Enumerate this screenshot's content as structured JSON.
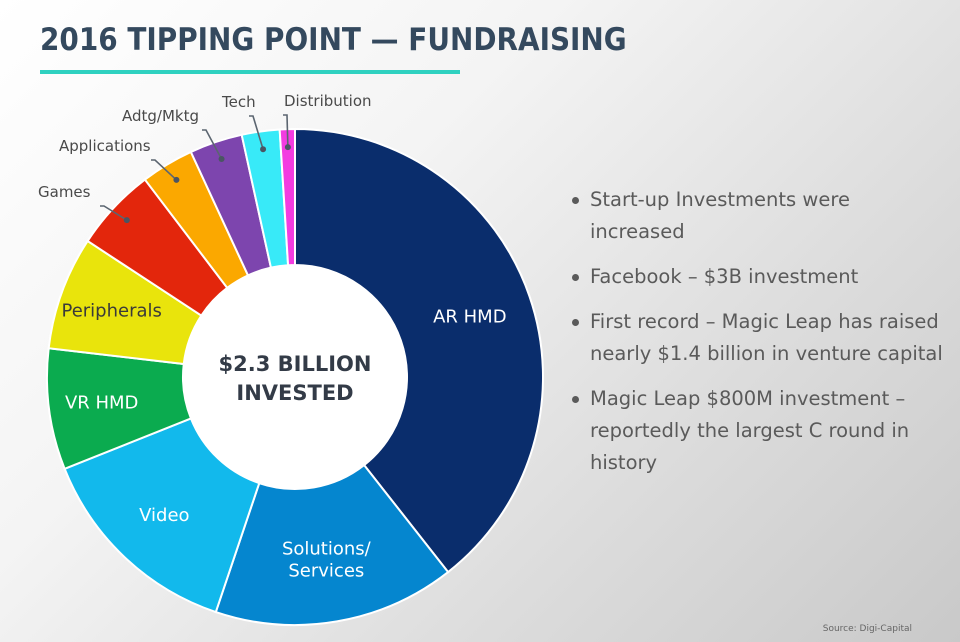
{
  "page": {
    "title": "2016 TIPPING POINT — FUNDRAISING",
    "source": "Source: Digi-Capital",
    "accent_color": "#2fd1c0"
  },
  "bullets": [
    "Start-up Investments were increased",
    "Facebook – $3B investment",
    "First record – Magic Leap has raised nearly $1.4 billion in venture capital",
    "Magic Leap $800M investment – reportedly the largest C round in history"
  ],
  "chart_data": {
    "type": "pie",
    "center_label": [
      "$2.3 BILLION",
      "INVESTED"
    ],
    "unit": "share of total",
    "slices": [
      {
        "label": "AR HMD",
        "value": 40,
        "color": "#0a2d6c",
        "label_style": "inside"
      },
      {
        "label": "Solutions/ Services",
        "value": 16,
        "color": "#0586cf",
        "label_style": "inside"
      },
      {
        "label": "Video",
        "value": 14,
        "color": "#12b9ec",
        "label_style": "inside"
      },
      {
        "label": "VR HMD",
        "value": 8,
        "color": "#0bab4f",
        "label_style": "inside"
      },
      {
        "label": "Peripherals",
        "value": 7.5,
        "color": "#e9e40c",
        "label_style": "inside"
      },
      {
        "label": "Games",
        "value": 5.5,
        "color": "#e3260c",
        "label_style": "callout"
      },
      {
        "label": "Applications",
        "value": 3.5,
        "color": "#fba800",
        "label_style": "callout"
      },
      {
        "label": "Adtg/Mktg",
        "value": 3.5,
        "color": "#7d45ae",
        "label_style": "callout"
      },
      {
        "label": "Tech",
        "value": 2.5,
        "color": "#38eaf8",
        "label_style": "callout"
      },
      {
        "label": "Distribution",
        "value": 1,
        "color": "#f33ce1",
        "label_style": "callout"
      }
    ],
    "legend": "none"
  }
}
